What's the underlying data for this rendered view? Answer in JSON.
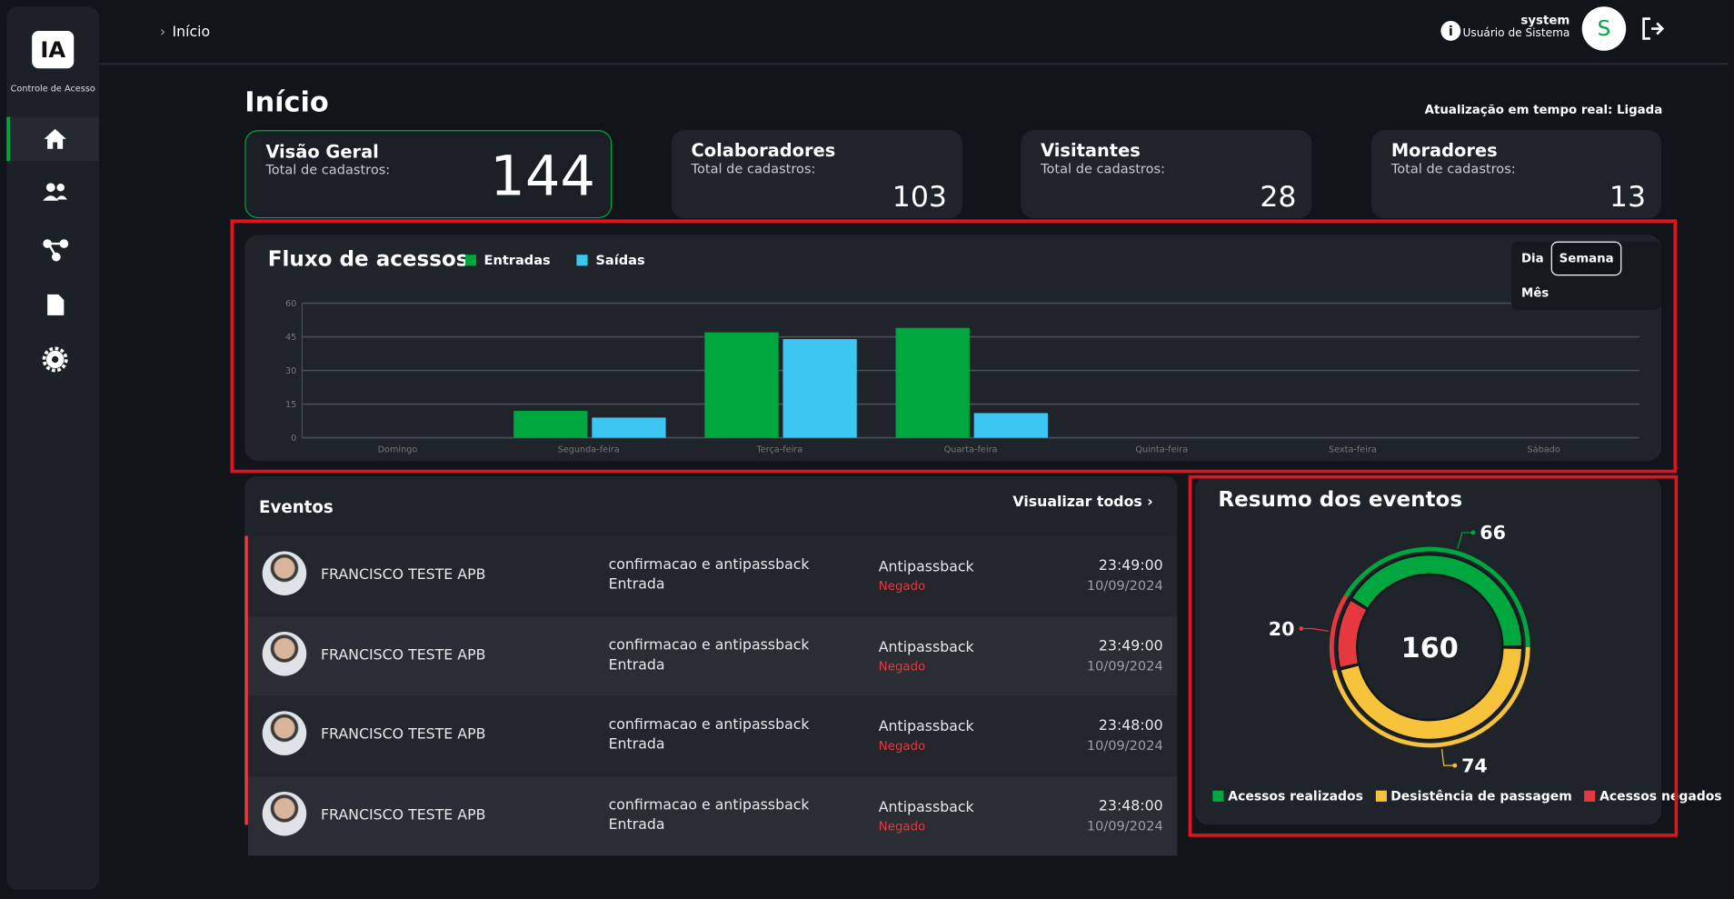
{
  "sidebar": {
    "logo": "IA",
    "subtitle": "Controle de Acesso"
  },
  "header": {
    "breadcrumb": "Início",
    "user_name": "system",
    "user_role": "Usuário de Sistema",
    "avatar": "S"
  },
  "page": {
    "title": "Início",
    "realtime": "Atualização em tempo real: Ligada"
  },
  "cards": [
    {
      "title": "Visão Geral",
      "label": "Total de cadastros:",
      "value": 144
    },
    {
      "title": "Colaboradores",
      "label": "Total de cadastros:",
      "value": 103
    },
    {
      "title": "Visitantes",
      "label": "Total de cadastros:",
      "value": 28
    },
    {
      "title": "Moradores",
      "label": "Total de cadastros:",
      "value": 13
    }
  ],
  "chart_data": [
    {
      "type": "bar",
      "title": "Fluxo de acessos",
      "categories": [
        "Domingo",
        "Segunda-feira",
        "Terça-feira",
        "Quarta-feira",
        "Quinta-feira",
        "Sexta-feira",
        "Sábado"
      ],
      "series": [
        {
          "name": "Entradas",
          "color": "#00a63e",
          "values": [
            0,
            12,
            47,
            49,
            0,
            0,
            0
          ]
        },
        {
          "name": "Saídas",
          "color": "#3cc6f2",
          "values": [
            0,
            9,
            44,
            11,
            0,
            0,
            0
          ]
        }
      ],
      "ylim": [
        0,
        60
      ],
      "yticks": [
        0,
        15,
        30,
        45,
        60
      ],
      "grid": true,
      "periods": [
        "Dia",
        "Semana",
        "Mês"
      ],
      "selected_period": 1
    },
    {
      "type": "donut",
      "title": "Resumo dos eventos",
      "total": 160,
      "categories": [
        "Acessos realizados",
        "Desistência de passagem",
        "Acessos negados"
      ],
      "values": [
        66,
        74,
        20
      ],
      "colors": [
        "#00a63e",
        "#f6c33b",
        "#e5393f"
      ]
    }
  ],
  "events": {
    "title": "Eventos",
    "view_all": "Visualizar todos",
    "rows": [
      {
        "name": "FRANCISCO TESTE APB",
        "description": "confirmacao e antipassback",
        "direction": "Entrada",
        "type": "Antipassback",
        "status": "Negado",
        "time": "23:49:00",
        "date": "10/09/2024"
      },
      {
        "name": "FRANCISCO TESTE APB",
        "description": "confirmacao e antipassback",
        "direction": "Entrada",
        "type": "Antipassback",
        "status": "Negado",
        "time": "23:49:00",
        "date": "10/09/2024"
      },
      {
        "name": "FRANCISCO TESTE APB",
        "description": "confirmacao e antipassback",
        "direction": "Entrada",
        "type": "Antipassback",
        "status": "Negado",
        "time": "23:48:00",
        "date": "10/09/2024"
      },
      {
        "name": "FRANCISCO TESTE APB",
        "description": "confirmacao e antipassback",
        "direction": "Entrada",
        "type": "Antipassback",
        "status": "Negado",
        "time": "23:48:00",
        "date": "10/09/2024"
      }
    ]
  }
}
